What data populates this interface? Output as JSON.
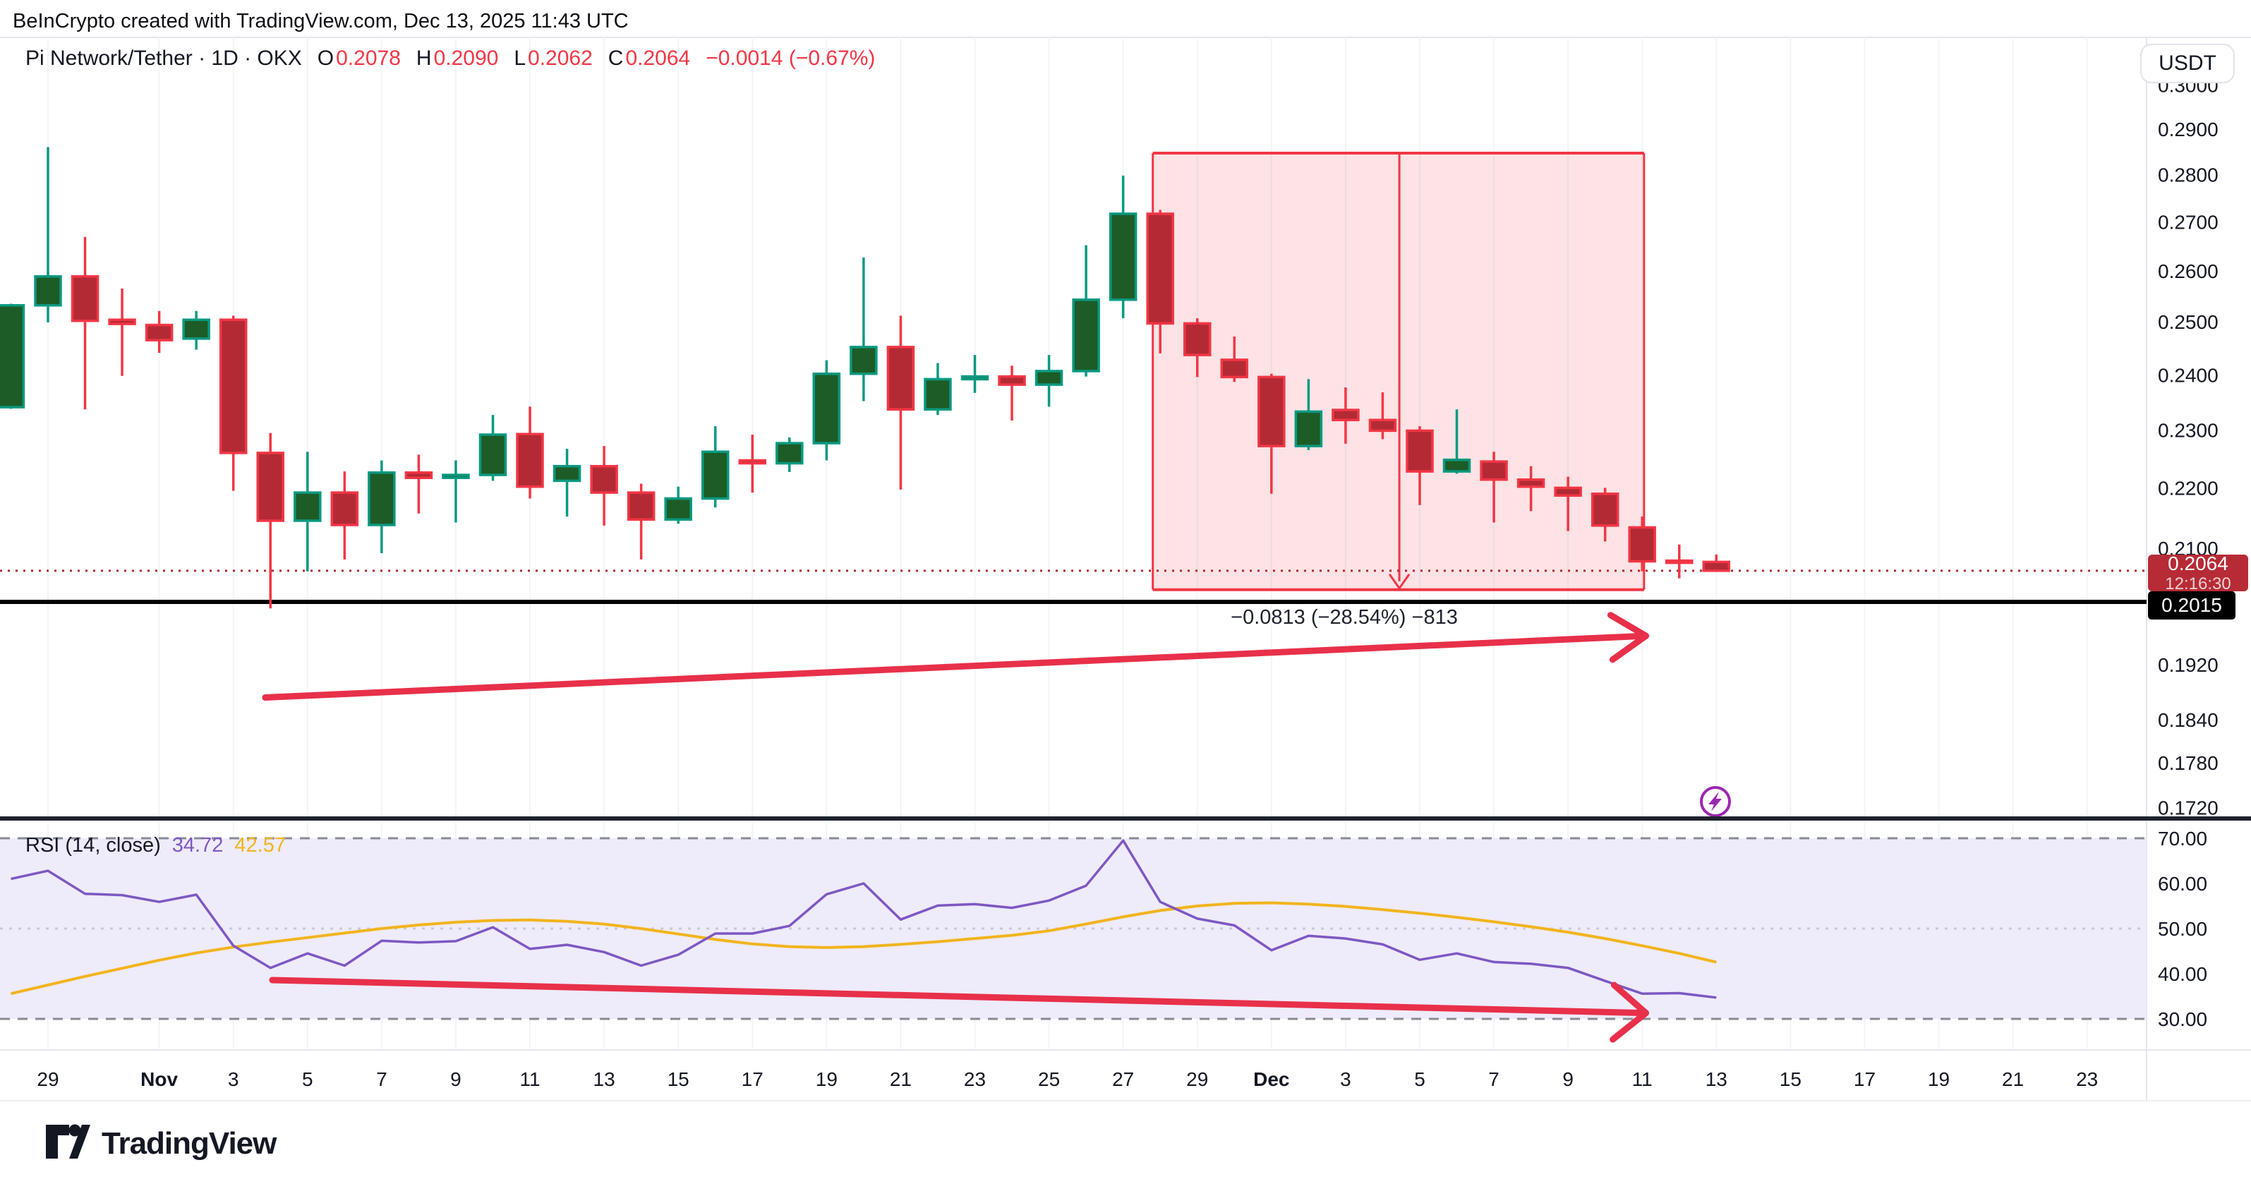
{
  "header": {
    "attribution": "BeInCrypto created with TradingView.com, Dec 13, 2025 11:43 UTC"
  },
  "title": {
    "symbol": "Pi Network/Tether · 1D · OKX",
    "o_label": "O",
    "o": "0.2078",
    "h_label": "H",
    "h": "0.2090",
    "l_label": "L",
    "l": "0.2062",
    "c_label": "C",
    "c": "0.2064",
    "change": "−0.0014 (−0.67%)"
  },
  "price_axis": {
    "unit_button": "USDT",
    "ticks": [
      "0.3000",
      "0.2900",
      "0.2800",
      "0.2700",
      "0.2600",
      "0.2500",
      "0.2400",
      "0.2300",
      "0.2200",
      "0.2100",
      "0.1920",
      "0.1840",
      "0.1780",
      "0.1720"
    ],
    "tick_values": [
      0.3,
      0.29,
      0.28,
      0.27,
      0.26,
      0.25,
      0.24,
      0.23,
      0.22,
      0.21,
      0.192,
      0.184,
      0.178,
      0.172
    ],
    "last_badge": {
      "price": "0.2064",
      "countdown": "12:16:30"
    },
    "level_badge": {
      "price": "0.2015"
    }
  },
  "rsi_label": {
    "title": "RSI (14, close)",
    "value": "34.72",
    "ma": "42.57"
  },
  "footer": {
    "brand": "TradingView"
  },
  "colors": {
    "up": "#089981",
    "up_body": "#1d5c26",
    "down": "#f23645",
    "down_body": "#b32a35",
    "badge_down": "#b62b36",
    "rsi_line": "#7e57c2",
    "rsi_ma": "#f2b41d",
    "annotation_red": "#e8304a",
    "flash": "#9c27b0",
    "grid": "#f2f4f8",
    "border": "#e3e6ec",
    "divider": "#1e222d",
    "dotted_price": "#b22833",
    "rsi_band_fill": "#eeebfa",
    "rsi_dash": "#878b94",
    "rsi_mid_dash": "#c7cad1",
    "axis_text": "#131722"
  },
  "time_axis": {
    "labels": [
      {
        "label": "29",
        "day": 0
      },
      {
        "label": "Nov",
        "day": 3,
        "bold": true
      },
      {
        "label": "3",
        "day": 5
      },
      {
        "label": "5",
        "day": 7
      },
      {
        "label": "7",
        "day": 9
      },
      {
        "label": "9",
        "day": 11
      },
      {
        "label": "11",
        "day": 13
      },
      {
        "label": "13",
        "day": 15
      },
      {
        "label": "15",
        "day": 17
      },
      {
        "label": "17",
        "day": 19
      },
      {
        "label": "19",
        "day": 21
      },
      {
        "label": "21",
        "day": 23
      },
      {
        "label": "23",
        "day": 25
      },
      {
        "label": "25",
        "day": 27
      },
      {
        "label": "27",
        "day": 29
      },
      {
        "label": "29",
        "day": 31
      },
      {
        "label": "Dec",
        "day": 33,
        "bold": true
      },
      {
        "label": "3",
        "day": 35
      },
      {
        "label": "5",
        "day": 37
      },
      {
        "label": "7",
        "day": 39
      },
      {
        "label": "9",
        "day": 41
      },
      {
        "label": "11",
        "day": 43
      },
      {
        "label": "13",
        "day": 45
      },
      {
        "label": "15",
        "day": 47
      },
      {
        "label": "17",
        "day": 49
      },
      {
        "label": "19",
        "day": 51
      },
      {
        "label": "21",
        "day": 53
      },
      {
        "label": "23",
        "day": 55
      }
    ]
  },
  "chart_data": {
    "type": "candlestick+rsi",
    "title": "Pi Network/Tether",
    "interval": "1D",
    "exchange": "OKX",
    "quote_unit": "USDT",
    "current_price": 0.2064,
    "countdown": "12:16:30",
    "horizontal_level": 0.2015,
    "ylabel": "USDT",
    "price_range_shown": [
      0.172,
      0.3
    ],
    "rsi_range_shown": [
      30,
      70
    ],
    "candles": [
      {
        "date": "Oct 28",
        "o": 0.2341,
        "h": 0.2535,
        "l": 0.2338,
        "c": 0.2532
      },
      {
        "date": "Oct 29",
        "o": 0.2532,
        "h": 0.286,
        "l": 0.2499,
        "c": 0.2589
      },
      {
        "date": "Oct 30",
        "o": 0.2589,
        "h": 0.2669,
        "l": 0.2337,
        "c": 0.2502
      },
      {
        "date": "Oct 31",
        "o": 0.2504,
        "h": 0.2565,
        "l": 0.2398,
        "c": 0.2496
      },
      {
        "date": "Nov 1",
        "o": 0.2494,
        "h": 0.2521,
        "l": 0.2441,
        "c": 0.2465
      },
      {
        "date": "Nov 2",
        "o": 0.2468,
        "h": 0.2521,
        "l": 0.2447,
        "c": 0.2504
      },
      {
        "date": "Nov 3",
        "o": 0.2504,
        "h": 0.2512,
        "l": 0.2195,
        "c": 0.226
      },
      {
        "date": "Nov 4",
        "o": 0.226,
        "h": 0.2295,
        "l": 0.2005,
        "c": 0.2145
      },
      {
        "date": "Nov 5",
        "o": 0.2145,
        "h": 0.2262,
        "l": 0.2063,
        "c": 0.2192
      },
      {
        "date": "Nov 6",
        "o": 0.2192,
        "h": 0.2228,
        "l": 0.2082,
        "c": 0.2138
      },
      {
        "date": "Nov 7",
        "o": 0.2138,
        "h": 0.2247,
        "l": 0.2092,
        "c": 0.2226
      },
      {
        "date": "Nov 8",
        "o": 0.2226,
        "h": 0.2257,
        "l": 0.2157,
        "c": 0.2217
      },
      {
        "date": "Nov 9",
        "o": 0.2217,
        "h": 0.2247,
        "l": 0.2142,
        "c": 0.2222
      },
      {
        "date": "Nov 10",
        "o": 0.2222,
        "h": 0.2327,
        "l": 0.2212,
        "c": 0.2292
      },
      {
        "date": "Nov 11",
        "o": 0.2293,
        "h": 0.2342,
        "l": 0.2182,
        "c": 0.2202
      },
      {
        "date": "Nov 12",
        "o": 0.2212,
        "h": 0.2267,
        "l": 0.2152,
        "c": 0.2237
      },
      {
        "date": "Nov 13",
        "o": 0.2237,
        "h": 0.2272,
        "l": 0.2137,
        "c": 0.2192
      },
      {
        "date": "Nov 14",
        "o": 0.2192,
        "h": 0.2207,
        "l": 0.2082,
        "c": 0.2147
      },
      {
        "date": "Nov 15",
        "o": 0.2147,
        "h": 0.2202,
        "l": 0.214,
        "c": 0.2182
      },
      {
        "date": "Nov 16",
        "o": 0.2182,
        "h": 0.2307,
        "l": 0.2167,
        "c": 0.2262
      },
      {
        "date": "Nov 17",
        "o": 0.2247,
        "h": 0.2292,
        "l": 0.2192,
        "c": 0.2242
      },
      {
        "date": "Nov 18",
        "o": 0.2242,
        "h": 0.2287,
        "l": 0.2227,
        "c": 0.2277
      },
      {
        "date": "Nov 19",
        "o": 0.2277,
        "h": 0.2427,
        "l": 0.2247,
        "c": 0.2402
      },
      {
        "date": "Nov 20",
        "o": 0.2402,
        "h": 0.2627,
        "l": 0.2352,
        "c": 0.2452
      },
      {
        "date": "Nov 21",
        "o": 0.2452,
        "h": 0.2512,
        "l": 0.2197,
        "c": 0.2337
      },
      {
        "date": "Nov 22",
        "o": 0.2337,
        "h": 0.2422,
        "l": 0.2327,
        "c": 0.2392
      },
      {
        "date": "Nov 23",
        "o": 0.2392,
        "h": 0.2437,
        "l": 0.2367,
        "c": 0.2397
      },
      {
        "date": "Nov 24",
        "o": 0.2397,
        "h": 0.2417,
        "l": 0.2317,
        "c": 0.2382
      },
      {
        "date": "Nov 25",
        "o": 0.2382,
        "h": 0.2437,
        "l": 0.2342,
        "c": 0.2407
      },
      {
        "date": "Nov 26",
        "o": 0.2407,
        "h": 0.2652,
        "l": 0.2397,
        "c": 0.2543
      },
      {
        "date": "Nov 27",
        "o": 0.2543,
        "h": 0.2798,
        "l": 0.2507,
        "c": 0.2717
      },
      {
        "date": "Nov 28",
        "o": 0.2717,
        "h": 0.2725,
        "l": 0.244,
        "c": 0.2497
      },
      {
        "date": "Nov 29",
        "o": 0.2497,
        "h": 0.2507,
        "l": 0.2396,
        "c": 0.2437
      },
      {
        "date": "Nov 30",
        "o": 0.2428,
        "h": 0.2472,
        "l": 0.2387,
        "c": 0.2396
      },
      {
        "date": "Dec 1",
        "o": 0.2396,
        "h": 0.2402,
        "l": 0.219,
        "c": 0.2272
      },
      {
        "date": "Dec 2",
        "o": 0.2272,
        "h": 0.2392,
        "l": 0.2265,
        "c": 0.2333
      },
      {
        "date": "Dec 3",
        "o": 0.2336,
        "h": 0.2377,
        "l": 0.2276,
        "c": 0.2318
      },
      {
        "date": "Dec 4",
        "o": 0.2318,
        "h": 0.2368,
        "l": 0.2284,
        "c": 0.2299
      },
      {
        "date": "Dec 5",
        "o": 0.2299,
        "h": 0.2307,
        "l": 0.2171,
        "c": 0.2228
      },
      {
        "date": "Dec 6",
        "o": 0.2228,
        "h": 0.2337,
        "l": 0.2224,
        "c": 0.2248
      },
      {
        "date": "Dec 7",
        "o": 0.2245,
        "h": 0.2262,
        "l": 0.2142,
        "c": 0.2214
      },
      {
        "date": "Dec 8",
        "o": 0.2214,
        "h": 0.2237,
        "l": 0.2161,
        "c": 0.2202
      },
      {
        "date": "Dec 9",
        "o": 0.22,
        "h": 0.2219,
        "l": 0.2128,
        "c": 0.2187
      },
      {
        "date": "Dec 10",
        "o": 0.219,
        "h": 0.22,
        "l": 0.2111,
        "c": 0.2137
      },
      {
        "date": "Dec 11",
        "o": 0.2134,
        "h": 0.2152,
        "l": 0.2063,
        "c": 0.2079
      },
      {
        "date": "Dec 12",
        "o": 0.208,
        "h": 0.2106,
        "l": 0.2052,
        "c": 0.2078
      },
      {
        "date": "Dec 13",
        "o": 0.2078,
        "h": 0.209,
        "l": 0.2062,
        "c": 0.2064
      }
    ],
    "measure_box": {
      "start_date": "Nov 28",
      "end_date": "Dec 11",
      "x1_day": 29.8,
      "x2_day": 43.05,
      "arrow_day": 36.45,
      "top_price": 0.2847,
      "bottom_price": 0.2034,
      "label": "−0.0813 (−28.54%) −813"
    },
    "price_trend_arrow": {
      "from_day": 5.86,
      "from_price": 0.1872,
      "to_day": 43.1,
      "to_price": 0.1963
    },
    "rsi": {
      "period": 14,
      "source": "close",
      "value": 34.72,
      "ma_value": 42.57,
      "axis_ticks": [
        70,
        60,
        50,
        40,
        30
      ],
      "upper_band": 70,
      "mid_band": 50,
      "lower_band": 30,
      "series": [
        61.0,
        62.8,
        57.7,
        57.4,
        55.9,
        57.5,
        46.2,
        41.3,
        44.5,
        41.8,
        47.3,
        46.9,
        47.2,
        50.3,
        45.5,
        46.4,
        44.8,
        41.8,
        44.2,
        48.9,
        48.9,
        50.6,
        57.6,
        60.0,
        52.0,
        55.1,
        55.4,
        54.6,
        56.2,
        59.5,
        69.5,
        55.9,
        52.2,
        50.7,
        45.2,
        48.4,
        47.8,
        46.5,
        43.1,
        44.5,
        42.6,
        42.2,
        41.3,
        38.4,
        35.6,
        35.7,
        34.72
      ],
      "ma_series": [
        35.6,
        37.5,
        39.4,
        41.2,
        43.0,
        44.6,
        45.9,
        47.0,
        48.0,
        49.0,
        50.0,
        50.8,
        51.4,
        51.8,
        51.9,
        51.6,
        51.0,
        50.0,
        48.8,
        47.6,
        46.6,
        46.0,
        45.8,
        46.0,
        46.5,
        47.1,
        47.8,
        48.5,
        49.5,
        51.0,
        52.6,
        54.0,
        55.0,
        55.6,
        55.7,
        55.4,
        54.9,
        54.2,
        53.4,
        52.5,
        51.5,
        50.4,
        49.2,
        47.8,
        46.2,
        44.5,
        42.57
      ],
      "trend_arrow": {
        "from_day": 6.05,
        "from_value": 38.6,
        "to_day": 43.1,
        "to_value": 31.3
      }
    }
  }
}
